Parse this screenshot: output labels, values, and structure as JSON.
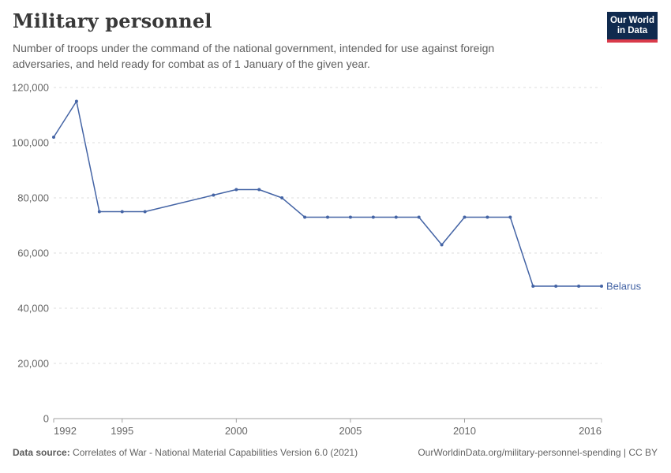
{
  "header": {
    "title": "Military personnel",
    "subtitle_lines": [
      "Number of troops under the command of the national government, intended for use against foreign",
      "adversaries, and held ready for combat as of 1 January of the given year."
    ],
    "logo": {
      "line1": "Our World",
      "line2": "in Data",
      "bg": "#102a4e",
      "accent": "#d93a4a"
    }
  },
  "chart_data": {
    "type": "line",
    "title": "Military personnel",
    "xlabel": "",
    "ylabel": "",
    "xlim": [
      1992,
      2016
    ],
    "ylim": [
      0,
      120000
    ],
    "grid": "horizontal-dashed",
    "legend_position": "end-of-line-label",
    "x_ticks": [
      1992,
      1995,
      2000,
      2005,
      2010,
      2016
    ],
    "y_ticks": [
      0,
      20000,
      40000,
      60000,
      80000,
      100000,
      120000
    ],
    "y_tick_labels": [
      "0",
      "20,000",
      "40,000",
      "60,000",
      "80,000",
      "100,000",
      "120,000"
    ],
    "series": [
      {
        "name": "Belarus",
        "color": "#4464a5",
        "x": [
          1992,
          1993,
          1994,
          1995,
          1996,
          1999,
          2000,
          2001,
          2002,
          2003,
          2004,
          2005,
          2006,
          2007,
          2008,
          2009,
          2010,
          2011,
          2012,
          2013,
          2014,
          2015,
          2016
        ],
        "y": [
          102000,
          115000,
          75000,
          75000,
          75000,
          81000,
          83000,
          83000,
          80000,
          73000,
          73000,
          73000,
          73000,
          73000,
          73000,
          63000,
          73000,
          73000,
          73000,
          48000,
          48000,
          48000,
          48000
        ]
      }
    ]
  },
  "footer": {
    "datasource_label": "Data source:",
    "datasource_text": "Correlates of War - National Material Capabilities Version 6.0 (2021)",
    "link_text": "OurWorldinData.org/military-personnel-spending | CC BY"
  }
}
